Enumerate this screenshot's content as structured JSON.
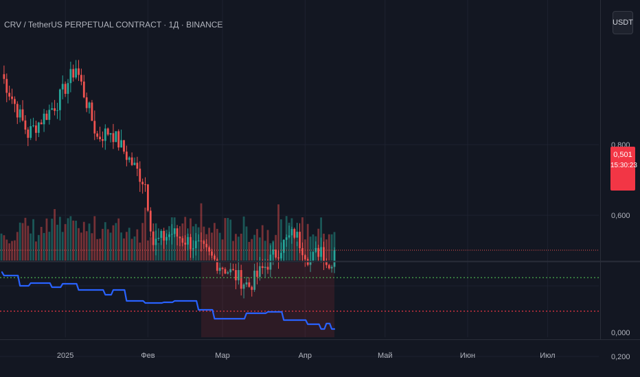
{
  "header": {
    "symbol_title": "CRV / TetherUS PERPETUAL CONTRACT · 1Д · BINANCE",
    "quote_currency": "USDT"
  },
  "price_tag": {
    "last_price": "0,501",
    "countdown": "15:30:23"
  },
  "colors": {
    "background": "#131722",
    "up": "#26a69a",
    "down": "#ef5350",
    "grid": "#1e2230",
    "indicator_line": "#2962ff",
    "upper_band": "#4caf50",
    "lower_band": "#f23645"
  },
  "chart_data": [
    {
      "type": "candlestick",
      "y_ticks": [
        "0,800",
        "0,600",
        "0,200"
      ],
      "x_ticks": [
        "2025",
        "Фев",
        "Мар",
        "Апр",
        "Май",
        "Июн",
        "Июл"
      ],
      "ylim": [
        0.2,
        1.05
      ],
      "last_price": 0.501,
      "segments": [
        {
          "from": "2024-12-08",
          "to": "2024-12-18",
          "start": 1.0,
          "end": 0.83
        },
        {
          "from": "2024-12-18",
          "to": "2024-12-29",
          "start": 0.83,
          "end": 0.92
        },
        {
          "from": "2024-12-29",
          "to": "2025-01-05",
          "start": 0.92,
          "end": 1.02
        },
        {
          "from": "2025-01-05",
          "to": "2025-01-13",
          "start": 1.02,
          "end": 0.82
        },
        {
          "from": "2025-01-13",
          "to": "2025-01-18",
          "start": 0.82,
          "end": 0.84
        },
        {
          "from": "2025-01-18",
          "to": "2025-01-24",
          "start": 0.84,
          "end": 0.77
        },
        {
          "from": "2025-01-24",
          "to": "2025-01-31",
          "start": 0.77,
          "end": 0.69
        },
        {
          "from": "2025-01-31",
          "to": "2025-02-03",
          "start": 0.69,
          "end": 0.52
        },
        {
          "from": "2025-02-03",
          "to": "2025-02-10",
          "start": 0.52,
          "end": 0.55
        },
        {
          "from": "2025-02-10",
          "to": "2025-02-20",
          "start": 0.55,
          "end": 0.51
        },
        {
          "from": "2025-02-20",
          "to": "2025-02-28",
          "start": 0.51,
          "end": 0.46
        },
        {
          "from": "2025-02-28",
          "to": "2025-03-11",
          "start": 0.46,
          "end": 0.4
        },
        {
          "from": "2025-03-11",
          "to": "2025-03-24",
          "start": 0.4,
          "end": 0.52
        },
        {
          "from": "2025-03-24",
          "to": "2025-03-28",
          "start": 0.52,
          "end": 0.55
        },
        {
          "from": "2025-03-28",
          "to": "2025-04-03",
          "start": 0.55,
          "end": 0.47
        },
        {
          "from": "2025-04-03",
          "to": "2025-04-07",
          "start": 0.47,
          "end": 0.51
        },
        {
          "from": "2025-04-07",
          "to": "2025-04-10",
          "start": 0.51,
          "end": 0.45
        },
        {
          "from": "2025-04-10",
          "to": "2025-04-12",
          "start": 0.45,
          "end": 0.501
        }
      ]
    },
    {
      "type": "line",
      "y_ticks": [
        "0,000"
      ],
      "ylim": [
        0.0,
        1.0
      ],
      "upper_band": 0.8,
      "lower_band": 0.31,
      "highlight_range": [
        "2025-02-21",
        "2025-04-12"
      ],
      "steps": [
        {
          "from": "2024-12-08",
          "value": 0.88
        },
        {
          "from": "2024-12-09",
          "value": 0.83
        },
        {
          "from": "2024-12-15",
          "value": 0.68
        },
        {
          "from": "2024-12-19",
          "value": 0.72
        },
        {
          "from": "2024-12-27",
          "value": 0.66
        },
        {
          "from": "2024-12-31",
          "value": 0.71
        },
        {
          "from": "2025-01-06",
          "value": 0.62
        },
        {
          "from": "2025-01-16",
          "value": 0.55
        },
        {
          "from": "2025-01-19",
          "value": 0.62
        },
        {
          "from": "2025-01-24",
          "value": 0.46
        },
        {
          "from": "2025-01-31",
          "value": 0.43
        },
        {
          "from": "2025-02-07",
          "value": 0.44
        },
        {
          "from": "2025-02-11",
          "value": 0.46
        },
        {
          "from": "2025-02-20",
          "value": 0.33
        },
        {
          "from": "2025-02-26",
          "value": 0.2
        },
        {
          "from": "2025-03-10",
          "value": 0.28
        },
        {
          "from": "2025-03-18",
          "value": 0.3
        },
        {
          "from": "2025-03-24",
          "value": 0.18
        },
        {
          "from": "2025-04-02",
          "value": 0.12
        },
        {
          "from": "2025-04-07",
          "value": 0.05
        },
        {
          "from": "2025-04-09",
          "value": 0.13
        },
        {
          "from": "2025-04-11",
          "value": 0.05
        }
      ]
    }
  ]
}
